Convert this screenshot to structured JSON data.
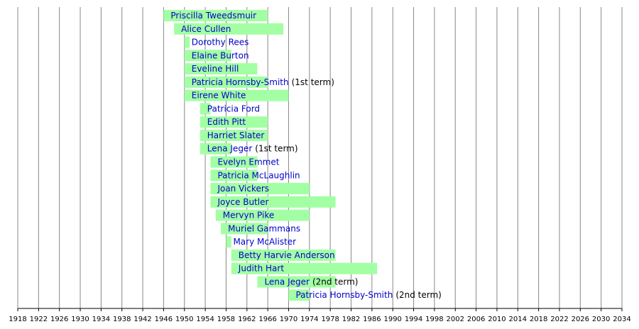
{
  "chart_data": {
    "type": "timeline",
    "xlim": [
      1918,
      2034
    ],
    "xticks": [
      1918,
      1922,
      1926,
      1930,
      1934,
      1938,
      1942,
      1946,
      1950,
      1954,
      1958,
      1962,
      1966,
      1970,
      1974,
      1978,
      1982,
      1986,
      1990,
      1994,
      1998,
      2002,
      2006,
      2010,
      2014,
      2018,
      2022,
      2026,
      2030,
      2034
    ],
    "grid": true,
    "color": "#a3ffa3",
    "name_color": "#0000cc",
    "bars": [
      {
        "name": "Priscilla Tweedsmuir",
        "start": 1946,
        "end": 1966
      },
      {
        "name": "Alice Cullen",
        "start": 1948,
        "end": 1969
      },
      {
        "name": "Dorothy Rees",
        "start": 1950,
        "end": 1951
      },
      {
        "name": "Elaine Burton",
        "start": 1950,
        "end": 1959
      },
      {
        "name": "Eveline Hill",
        "start": 1950,
        "end": 1964
      },
      {
        "name": "Patricia Hornsby-Smith",
        "note": "(1st term)",
        "start": 1950,
        "end": 1966
      },
      {
        "name": "Eirene White",
        "start": 1950,
        "end": 1970
      },
      {
        "name": "Patricia Ford",
        "start": 1953,
        "end": 1955
      },
      {
        "name": "Edith Pitt",
        "start": 1953,
        "end": 1966
      },
      {
        "name": "Harriet Slater",
        "start": 1953,
        "end": 1966
      },
      {
        "name": "Lena Jeger",
        "note": "(1st term)",
        "start": 1953,
        "end": 1959
      },
      {
        "name": "Evelyn Emmet",
        "start": 1955,
        "end": 1964
      },
      {
        "name": "Patricia McLaughlin",
        "start": 1955,
        "end": 1964
      },
      {
        "name": "Joan Vickers",
        "start": 1955,
        "end": 1974
      },
      {
        "name": "Joyce Butler",
        "start": 1955,
        "end": 1979
      },
      {
        "name": "Mervyn Pike",
        "start": 1956,
        "end": 1974
      },
      {
        "name": "Muriel Gammans",
        "start": 1957,
        "end": 1966
      },
      {
        "name": "Mary McAlister",
        "start": 1958,
        "end": 1959
      },
      {
        "name": "Betty Harvie Anderson",
        "start": 1959,
        "end": 1979
      },
      {
        "name": "Judith Hart",
        "start": 1959,
        "end": 1987
      },
      {
        "name": "Lena Jeger",
        "note": "(2nd term)",
        "start": 1964,
        "end": 1979
      },
      {
        "name": "Patricia Hornsby-Smith",
        "note": "(2nd term)",
        "start": 1970,
        "end": 1974
      }
    ]
  }
}
